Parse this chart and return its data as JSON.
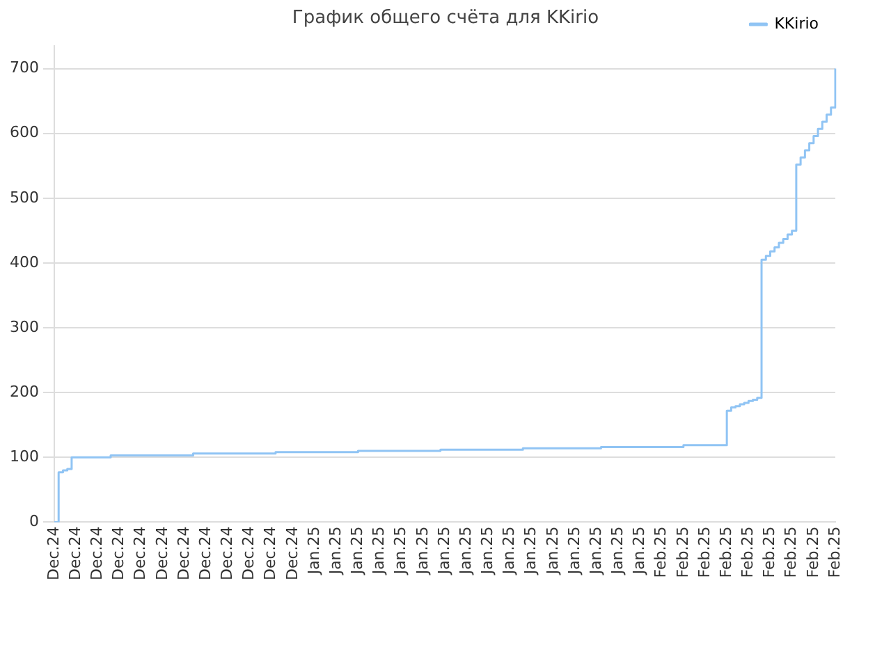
{
  "chart_data": {
    "type": "step",
    "title": "График общего счёта для KKirio",
    "legend": "top right",
    "grid": "y",
    "marker": "none",
    "categories": [
      "Dec.24",
      null,
      null,
      null,
      null,
      "Dec.24",
      null,
      null,
      null,
      null,
      "Dec.24",
      null,
      null,
      null,
      null,
      "Dec.24",
      null,
      null,
      null,
      null,
      "Dec.24",
      null,
      null,
      null,
      null,
      "Dec.24",
      null,
      null,
      null,
      null,
      "Dec.24",
      null,
      null,
      null,
      null,
      "Dec.24",
      null,
      null,
      null,
      null,
      "Dec.24",
      null,
      null,
      null,
      null,
      "Dec.24",
      null,
      null,
      null,
      null,
      "Dec.24",
      null,
      null,
      null,
      null,
      "Dec.24",
      null,
      null,
      null,
      null,
      "Jan.25",
      null,
      null,
      null,
      null,
      "Jan.25",
      null,
      null,
      null,
      null,
      "Jan.25",
      null,
      null,
      null,
      null,
      "Jan.25",
      null,
      null,
      null,
      null,
      "Jan.25",
      null,
      null,
      null,
      null,
      "Jan.25",
      null,
      null,
      null,
      null,
      "Jan.25",
      null,
      null,
      null,
      null,
      "Jan.25",
      null,
      null,
      null,
      null,
      "Jan.25",
      null,
      null,
      null,
      null,
      "Jan.25",
      null,
      null,
      null,
      null,
      "Jan.25",
      null,
      null,
      null,
      null,
      "Jan.25",
      null,
      null,
      null,
      null,
      "Jan.25",
      null,
      null,
      null,
      null,
      "Jan.25",
      null,
      null,
      null,
      null,
      "Jan.25",
      null,
      null,
      null,
      null,
      "Jan.25",
      null,
      null,
      null,
      null,
      "Feb.25",
      null,
      null,
      null,
      null,
      "Feb.25",
      null,
      null,
      null,
      null,
      "Feb.25",
      null,
      null,
      null,
      null,
      "Feb.25",
      null,
      null,
      null,
      null,
      "Feb.25",
      null,
      null,
      null,
      null,
      "Feb.25",
      null,
      null,
      null,
      null,
      "Feb.25",
      null,
      null,
      null,
      null,
      "Feb.25",
      null,
      null,
      null,
      null,
      "Feb.25"
    ],
    "ylim": [
      0,
      735
    ],
    "yticks": [
      0,
      100,
      200,
      300,
      400,
      500,
      600,
      700
    ],
    "series": [
      {
        "name": "KKirio",
        "color": "#90c4f4",
        "values": [
          0,
          77,
          80,
          82,
          100,
          100,
          100,
          100,
          100,
          100,
          100,
          100,
          100,
          103,
          103,
          103,
          103,
          103,
          103,
          103,
          103,
          103,
          103,
          103,
          103,
          103,
          103,
          103,
          103,
          103,
          103,
          103,
          106,
          106,
          106,
          106,
          106,
          106,
          106,
          106,
          106,
          106,
          106,
          106,
          106,
          106,
          106,
          106,
          106,
          106,
          106,
          108,
          108,
          108,
          108,
          108,
          108,
          108,
          108,
          108,
          108,
          108,
          108,
          108,
          108,
          108,
          108,
          108,
          108,
          108,
          110,
          110,
          110,
          110,
          110,
          110,
          110,
          110,
          110,
          110,
          110,
          110,
          110,
          110,
          110,
          110,
          110,
          110,
          110,
          112,
          112,
          112,
          112,
          112,
          112,
          112,
          112,
          112,
          112,
          112,
          112,
          112,
          112,
          112,
          112,
          112,
          112,
          112,
          114,
          114,
          114,
          114,
          114,
          114,
          114,
          114,
          114,
          114,
          114,
          114,
          114,
          114,
          114,
          114,
          114,
          114,
          116,
          116,
          116,
          116,
          116,
          116,
          116,
          116,
          116,
          116,
          116,
          116,
          116,
          116,
          116,
          116,
          116,
          116,
          116,
          119,
          119,
          119,
          119,
          119,
          119,
          119,
          119,
          119,
          119,
          172,
          177,
          179,
          182,
          184,
          187,
          189,
          192,
          405,
          411,
          418,
          424,
          431,
          437,
          444,
          450,
          552,
          563,
          574,
          585,
          596,
          607,
          618,
          629,
          640,
          700
        ]
      }
    ]
  }
}
